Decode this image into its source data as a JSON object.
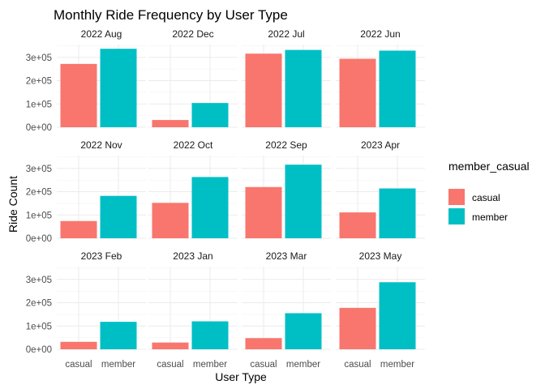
{
  "chart_data": {
    "type": "bar",
    "title": "Monthly Ride Frequency by User Type",
    "xlabel": "User Type",
    "ylabel": "Ride Count",
    "categories": [
      "casual",
      "member"
    ],
    "y_ticks": [
      0,
      100000,
      200000,
      300000
    ],
    "y_tick_labels": [
      "0e+00",
      "1e+05",
      "2e+05",
      "3e+05"
    ],
    "ylim": [
      0,
      355000
    ],
    "colors": {
      "casual": "#F8766D",
      "member": "#00BFC4"
    },
    "legend": {
      "title": "member_casual",
      "entries": [
        {
          "label": "casual",
          "color": "#F8766D"
        },
        {
          "label": "member",
          "color": "#00BFC4"
        }
      ]
    },
    "facets": [
      {
        "label": "2022 Aug",
        "casual": 272000,
        "member": 337000
      },
      {
        "label": "2022 Dec",
        "casual": 31000,
        "member": 104000
      },
      {
        "label": "2022 Jul",
        "casual": 316000,
        "member": 332000
      },
      {
        "label": "2022 Jun",
        "casual": 294000,
        "member": 329000
      },
      {
        "label": "2022 Nov",
        "casual": 74000,
        "member": 182000
      },
      {
        "label": "2022 Oct",
        "casual": 152000,
        "member": 263000
      },
      {
        "label": "2022 Sep",
        "casual": 220000,
        "member": 316000
      },
      {
        "label": "2023 Apr",
        "casual": 111000,
        "member": 214000
      },
      {
        "label": "2023 Feb",
        "casual": 32000,
        "member": 118000
      },
      {
        "label": "2023 Jan",
        "casual": 29000,
        "member": 120000
      },
      {
        "label": "2023 Mar",
        "casual": 48000,
        "member": 155000
      },
      {
        "label": "2023 May",
        "casual": 178000,
        "member": 288000
      }
    ]
  }
}
